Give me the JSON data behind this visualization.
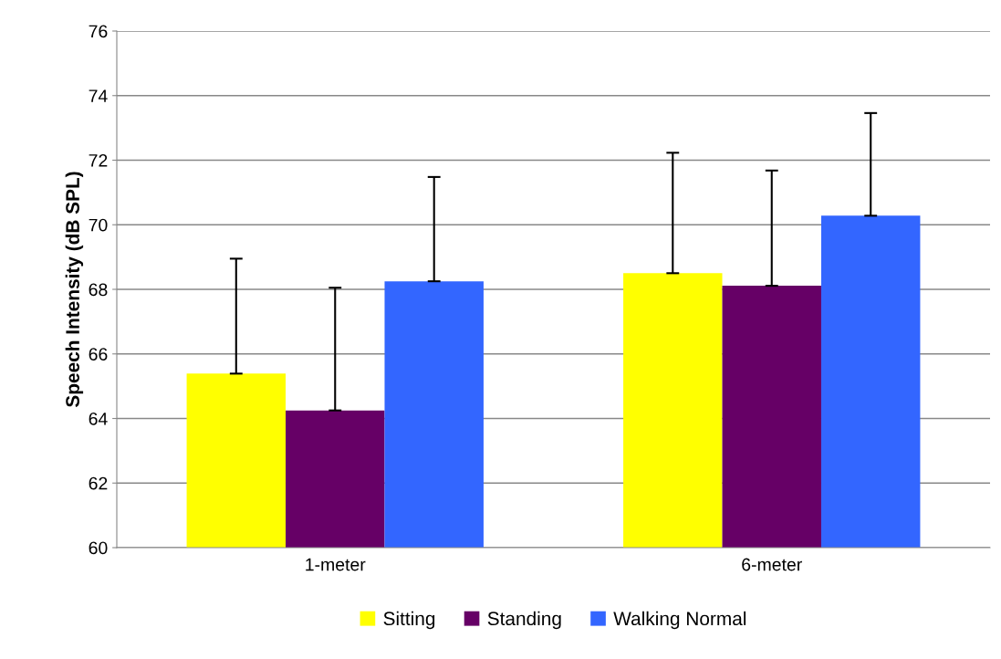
{
  "chart_data": {
    "type": "bar",
    "ylabel": "Speech Intensity (dB SPL)",
    "categories": [
      "1-meter",
      "6-meter"
    ],
    "series": [
      {
        "name": "Sitting",
        "color": "#ffff00",
        "values": [
          65.39,
          68.5
        ],
        "errors": [
          [
            65.39,
            68.95
          ],
          [
            68.5,
            72.23
          ]
        ]
      },
      {
        "name": "Standing",
        "color": "#660066",
        "values": [
          64.25,
          68.11
        ],
        "errors": [
          [
            64.25,
            68.05
          ],
          [
            68.11,
            71.68
          ]
        ]
      },
      {
        "name": "Walking Normal",
        "color": "#3366ff",
        "values": [
          68.25,
          70.28
        ],
        "errors": [
          [
            68.25,
            71.48
          ],
          [
            70.28,
            73.46
          ]
        ]
      }
    ],
    "ylim": [
      60,
      76
    ],
    "yticks": [
      60,
      62,
      64,
      66,
      68,
      70,
      72,
      74,
      76
    ],
    "grid": "y",
    "legend": "bottom"
  }
}
